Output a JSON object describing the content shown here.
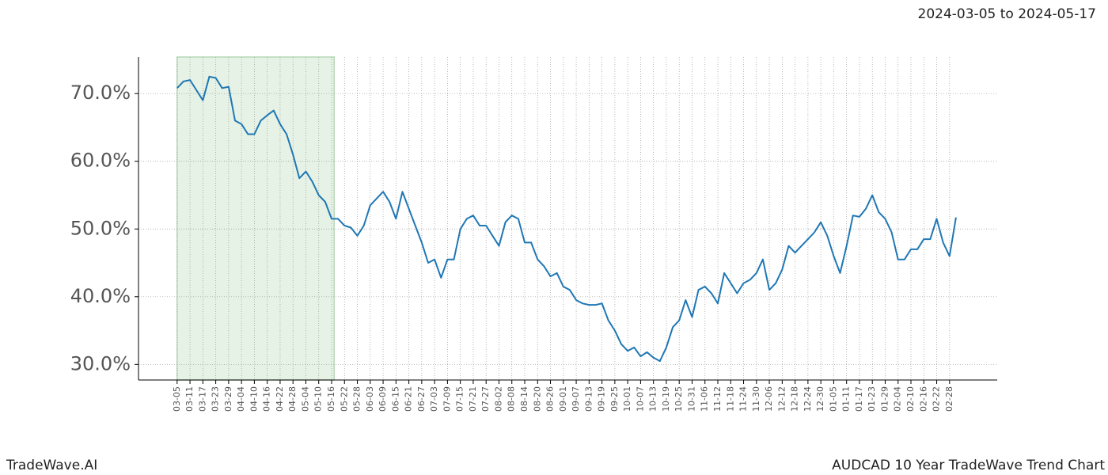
{
  "chart_data": {
    "type": "line",
    "subtitle": "2024-03-05 to 2024-05-17",
    "footer_left": "TradeWave.AI",
    "footer_right": "AUDCAD 10 Year TradeWave Trend Chart",
    "x": [
      "03-05",
      null,
      "03-11",
      null,
      "03-17",
      null,
      "03-23",
      null,
      "03-29",
      null,
      "04-04",
      null,
      "04-10",
      null,
      "04-16",
      null,
      "04-22",
      null,
      "04-28",
      null,
      "05-04",
      null,
      "05-10",
      null,
      "05-16",
      null,
      "05-22",
      null,
      "05-28",
      null,
      "06-03",
      null,
      "06-09",
      null,
      "06-15",
      null,
      "06-21",
      null,
      "06-27",
      null,
      "07-03",
      null,
      "07-09",
      null,
      "07-15",
      null,
      "07-21",
      null,
      "07-27",
      null,
      "08-02",
      null,
      "08-08",
      null,
      "08-14",
      null,
      "08-20",
      null,
      "08-26",
      null,
      "09-01",
      null,
      "09-07",
      null,
      "09-13",
      null,
      "09-19",
      null,
      "09-25",
      null,
      "10-01",
      null,
      "10-07",
      null,
      "10-13",
      null,
      "10-19",
      null,
      "10-25",
      null,
      "10-31",
      null,
      "11-06",
      null,
      "11-12",
      null,
      "11-18",
      null,
      "11-24",
      null,
      "11-30",
      null,
      "12-06",
      null,
      "12-12",
      null,
      "12-18",
      null,
      "12-24",
      null,
      "12-30",
      null,
      "01-05",
      null,
      "01-11",
      null,
      "01-17",
      null,
      "01-23",
      null,
      "01-29",
      null,
      "02-04",
      null,
      "02-10",
      null,
      "02-16",
      null,
      "02-22",
      null,
      "02-28",
      null
    ],
    "series": [
      {
        "color": "#1f77b4",
        "values": [
          70.8,
          71.8,
          72,
          70.5,
          69,
          72.5,
          72.3,
          70.8,
          71,
          66,
          65.5,
          64,
          64,
          66,
          66.8,
          67.5,
          65.5,
          64,
          61,
          57.5,
          58.5,
          57,
          55,
          54,
          51.5,
          51.5,
          50.5,
          50.2,
          49,
          50.5,
          53.5,
          54.5,
          55.5,
          54,
          51.5,
          55.5,
          53,
          50.5,
          48,
          45,
          45.5,
          42.8,
          45.5,
          45.5,
          50,
          51.5,
          52,
          50.5,
          50.5,
          49,
          47.5,
          51,
          52,
          51.5,
          48,
          48,
          45.5,
          44.5,
          43,
          43.5,
          41.5,
          41,
          39.5,
          39,
          38.8,
          38.8,
          39,
          36.5,
          35,
          33,
          32,
          32.5,
          31.2,
          31.8,
          31,
          30.5,
          32.5,
          35.5,
          36.5,
          39.5,
          37,
          41,
          41.5,
          40.5,
          39,
          43.5,
          42,
          40.5,
          42,
          42.5,
          43.5,
          45.5,
          41,
          42,
          44,
          47.5,
          46.5,
          47.5,
          48.5,
          49.5,
          51,
          49,
          46,
          43.5,
          47.5,
          52,
          51.8,
          53,
          55,
          52.5,
          51.5,
          49.5,
          45.5,
          45.5,
          47,
          47,
          48.5,
          48.5,
          51.5,
          48,
          46,
          51.7
        ]
      }
    ],
    "ylim": [
      27.7,
      75.4
    ],
    "yticks": [
      {
        "value": 30,
        "label": "30.0%"
      },
      {
        "value": 40,
        "label": "40.0%"
      },
      {
        "value": 50,
        "label": "50.0%"
      },
      {
        "value": 60,
        "label": "60.0%"
      },
      {
        "value": 70,
        "label": "70.0%"
      }
    ],
    "grid": true,
    "highlight": {
      "from": "03-05",
      "to": "05-16",
      "color": "#e5f2e5"
    }
  }
}
